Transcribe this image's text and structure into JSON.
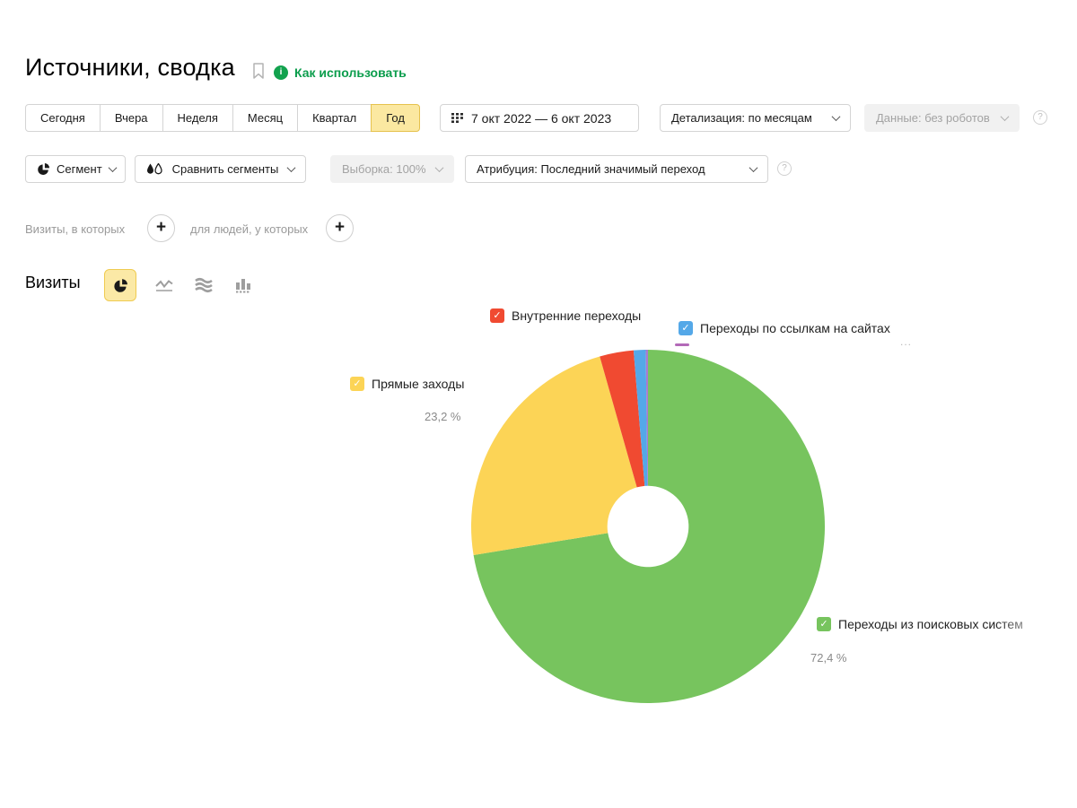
{
  "header": {
    "title": "Источники, сводка",
    "help_link": "Как использовать"
  },
  "period_tabs": {
    "items": [
      {
        "label": "Сегодня",
        "selected": false
      },
      {
        "label": "Вчера",
        "selected": false
      },
      {
        "label": "Неделя",
        "selected": false
      },
      {
        "label": "Месяц",
        "selected": false
      },
      {
        "label": "Квартал",
        "selected": false
      },
      {
        "label": "Год",
        "selected": true
      }
    ]
  },
  "toolbar": {
    "date_range": "7 окт 2022 — 6 окт 2023",
    "detalization": "Детализация: по месяцам",
    "data_mode": "Данные: без роботов",
    "segment": "Сегмент",
    "compare_segments": "Сравнить сегменты",
    "sampling": "Выборка: 100%",
    "attribution": "Атрибуция: Последний значимый переход"
  },
  "filter_bar": {
    "visits_label": "Визиты, в которых",
    "people_label": "для людей, у которых"
  },
  "metric_bar": {
    "label": "Визиты"
  },
  "legend": {
    "internal": {
      "label": "Внутренние переходы",
      "color": "#F04A31"
    },
    "links": {
      "label": "Переходы по ссылкам на сайтах",
      "color": "#54A8E8"
    },
    "direct": {
      "label": "Прямые заходы",
      "pct": "23,2 %",
      "color": "#FCD456"
    },
    "search": {
      "label": "Переходы из поисковых систем",
      "pct": "72,4 %",
      "color": "#77C45E"
    },
    "hidden_ellipsis": "...",
    "hidden_dash_color": "#B36AB8"
  },
  "chart_data": {
    "type": "pie",
    "title": "Визиты",
    "donut": true,
    "donut_hole_ratio": 0.23,
    "legend_position": "around",
    "series": [
      {
        "name": "Переходы из поисковых систем",
        "value": 72.4,
        "color": "#77C45E",
        "pct_label": "72,4 %"
      },
      {
        "name": "Прямые заходы",
        "value": 23.2,
        "color": "#FCD456",
        "pct_label": "23,2 %"
      },
      {
        "name": "Внутренние переходы",
        "value": 3.1,
        "color": "#F04A31",
        "pct_label": ""
      },
      {
        "name": "Переходы по ссылкам на сайтах",
        "value": 1.1,
        "color": "#54A8E8",
        "pct_label": ""
      },
      {
        "name": "…",
        "value": 0.2,
        "color": "#A87BD0",
        "pct_label": ""
      }
    ]
  }
}
